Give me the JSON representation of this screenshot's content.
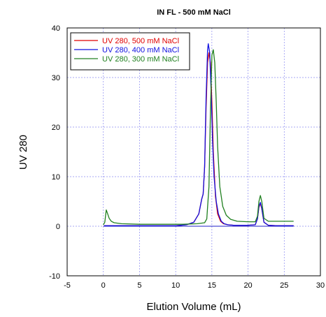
{
  "chart_data": {
    "type": "line",
    "title": "IN FL - 500 mM NaCl",
    "xlabel": "Elution Volume (mL)",
    "ylabel": "UV 280",
    "xlim": [
      -5,
      30
    ],
    "ylim": [
      -10,
      40
    ],
    "xticks": [
      -5,
      0,
      5,
      10,
      15,
      20,
      25,
      30
    ],
    "yticks": [
      -10,
      0,
      10,
      20,
      30,
      40
    ],
    "grid": true,
    "legend_position": "top-left",
    "series": [
      {
        "name": "UV 280, 500 mM NaCl",
        "color": "#e00000",
        "x": [
          0.1,
          2,
          5,
          8,
          10,
          11.5,
          12.5,
          13.2,
          13.6,
          13.8,
          14.0,
          14.2,
          14.4,
          14.6,
          14.8,
          15.0,
          15.2,
          15.5,
          15.8,
          16.2,
          16.6,
          17.2,
          18,
          20,
          21.0,
          21.3,
          21.5,
          21.7,
          21.9,
          22.2,
          22.8,
          24,
          26.3
        ],
        "y": [
          0.1,
          0.1,
          0.1,
          0.1,
          0.1,
          0.3,
          0.8,
          2.5,
          5.5,
          6.5,
          12,
          24,
          33,
          35,
          33,
          25,
          15,
          6,
          2.5,
          1,
          0.5,
          0.3,
          0.2,
          0.2,
          0.3,
          1.5,
          3.8,
          4.6,
          3.5,
          0.8,
          0.2,
          0.1,
          0.1
        ]
      },
      {
        "name": "UV 280, 400 mM NaCl",
        "color": "#1010e0",
        "x": [
          0.1,
          2,
          5,
          8,
          10,
          11.5,
          12.5,
          13.2,
          13.6,
          13.8,
          14.0,
          14.2,
          14.4,
          14.5,
          14.7,
          14.9,
          15.1,
          15.3,
          15.6,
          15.9,
          16.3,
          16.7,
          17.2,
          18,
          20,
          21.0,
          21.3,
          21.5,
          21.7,
          21.9,
          22.2,
          22.8,
          24,
          26.3
        ],
        "y": [
          0.1,
          0.1,
          0.1,
          0.1,
          0.1,
          0.3,
          0.8,
          2.5,
          5.5,
          6.5,
          12,
          26,
          35.5,
          36.8,
          35,
          27,
          17,
          10,
          5,
          2.5,
          1,
          0.5,
          0.3,
          0.2,
          0.2,
          0.3,
          1.5,
          4,
          4.8,
          3.6,
          0.8,
          0.2,
          0.1,
          0.1
        ]
      },
      {
        "name": "UV 280, 300 mM NaCl",
        "color": "#208020",
        "x": [
          0,
          0.2,
          0.4,
          0.6,
          0.8,
          1.1,
          1.5,
          2.5,
          5,
          8,
          11,
          13,
          14.0,
          14.3,
          14.6,
          14.8,
          15.0,
          15.2,
          15.4,
          15.6,
          15.8,
          16.1,
          16.5,
          17.0,
          17.6,
          18.5,
          20,
          21.0,
          21.3,
          21.5,
          21.7,
          21.9,
          22.2,
          22.8,
          24,
          26.3
        ],
        "y": [
          0.3,
          0.8,
          3.3,
          2.5,
          1.6,
          1.0,
          0.7,
          0.5,
          0.4,
          0.4,
          0.4,
          0.5,
          0.7,
          1.5,
          8,
          23,
          34.5,
          35.6,
          33,
          25,
          16,
          8,
          4,
          2.2,
          1.4,
          1.0,
          0.9,
          0.9,
          2,
          5,
          6.2,
          5,
          1.6,
          1.0,
          1.0,
          1.0
        ]
      }
    ]
  }
}
